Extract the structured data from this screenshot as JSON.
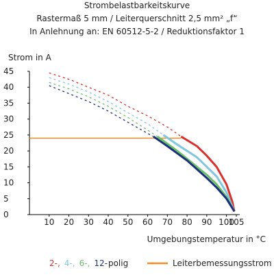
{
  "chart_data": {
    "type": "line",
    "title": "Strombelastbarkeitskurve",
    "subtitle": [
      "Rastermaß 5 mm / Leiterquerschnitt 2,5 mm² „f“",
      "In Anlehnung an: EN 60512-5-2 / Reduktionsfaktor 1"
    ],
    "y_label": "Strom in A",
    "x_label": "Umgebungstemperatur in °C",
    "xlim": [
      0,
      105
    ],
    "ylim": [
      0,
      45
    ],
    "xticks": [
      10,
      20,
      30,
      40,
      50,
      60,
      70,
      80,
      90,
      100,
      105
    ],
    "yticks": [
      0,
      5,
      10,
      15,
      20,
      25,
      30,
      35,
      40,
      45
    ],
    "rated_current": {
      "name": "Leiterbemessungsstrom",
      "color": "#f08a24",
      "value": 24,
      "x": [
        0,
        77
      ]
    },
    "legend_suffix": "polig",
    "series": [
      {
        "name": "2-,",
        "color": "#d9302c",
        "x": [
          10,
          20,
          30,
          40,
          50,
          60,
          70,
          77,
          85,
          90,
          95,
          100,
          103,
          104
        ],
        "values": [
          44.5,
          42.5,
          40,
          37.5,
          34,
          31,
          27.5,
          24.5,
          21.5,
          18.5,
          15,
          9.5,
          4,
          1
        ]
      },
      {
        "name": "4-,",
        "color": "#7fc6e0",
        "x": [
          10,
          20,
          30,
          40,
          50,
          60,
          68,
          75,
          85,
          90,
          95,
          100,
          104
        ],
        "values": [
          43,
          41,
          38.5,
          35.5,
          32,
          28.5,
          25,
          22,
          18,
          15,
          12,
          7,
          1
        ]
      },
      {
        "name": "6-,",
        "color": "#6abf69",
        "x": [
          10,
          20,
          30,
          40,
          50,
          60,
          65,
          75,
          85,
          90,
          95,
          100,
          104
        ],
        "values": [
          41.5,
          39.5,
          37,
          34,
          30.5,
          26.5,
          24.5,
          20,
          15,
          12.5,
          9.5,
          5.5,
          1
        ]
      },
      {
        "name": "12-",
        "color": "#1c2f7a",
        "x": [
          10,
          20,
          30,
          40,
          50,
          60,
          63,
          70,
          80,
          90,
          95,
          100,
          103,
          104
        ],
        "values": [
          40.5,
          38,
          35.5,
          32.5,
          29,
          25.5,
          24.5,
          21.5,
          17,
          11.5,
          8.5,
          5,
          2,
          1
        ]
      }
    ]
  }
}
